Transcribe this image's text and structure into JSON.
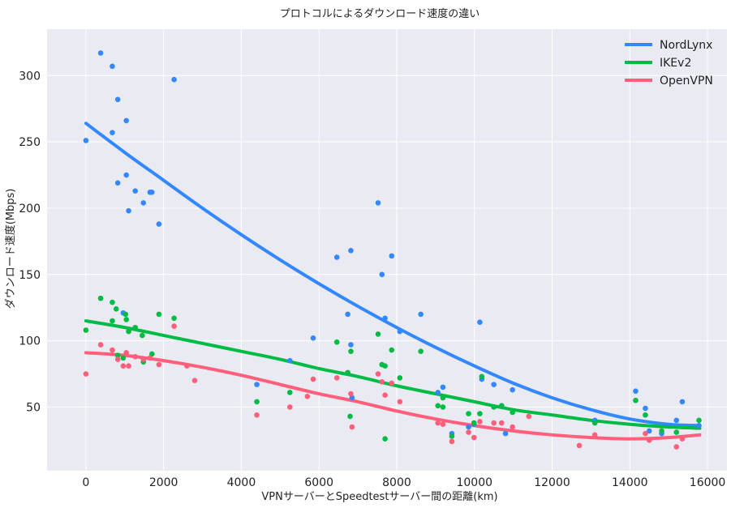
{
  "chart_data": {
    "type": "scatter",
    "title": "プロトコルによるダウンロード速度の違い",
    "xlabel": "VPNサーバーとSpeedtestサーバー間の距離(km)",
    "ylabel": "ダウンロード速度(Mbps)",
    "xlim": [
      -1000,
      16500
    ],
    "ylim": [
      2,
      335
    ],
    "xticks": [
      0,
      2000,
      4000,
      6000,
      8000,
      10000,
      12000,
      14000,
      16000
    ],
    "yticks": [
      50,
      100,
      150,
      200,
      250,
      300
    ],
    "grid": true,
    "background": "#eaeaf2",
    "legend_position": "top-right",
    "series": [
      {
        "name": "NordLynx",
        "color": "#3388ff",
        "points": [
          [
            0,
            251
          ],
          [
            380,
            317
          ],
          [
            680,
            307
          ],
          [
            680,
            257
          ],
          [
            820,
            282
          ],
          [
            820,
            219
          ],
          [
            1040,
            266
          ],
          [
            1040,
            225
          ],
          [
            1100,
            198
          ],
          [
            960,
            121
          ],
          [
            1270,
            213
          ],
          [
            1480,
            204
          ],
          [
            1650,
            212
          ],
          [
            1700,
            212
          ],
          [
            1880,
            188
          ],
          [
            2270,
            297
          ],
          [
            4400,
            67
          ],
          [
            5250,
            85
          ],
          [
            5850,
            102
          ],
          [
            6460,
            163
          ],
          [
            6740,
            120
          ],
          [
            6820,
            168
          ],
          [
            6820,
            97
          ],
          [
            6850,
            57
          ],
          [
            7520,
            204
          ],
          [
            7620,
            150
          ],
          [
            7700,
            117
          ],
          [
            7870,
            164
          ],
          [
            8080,
            107
          ],
          [
            8620,
            120
          ],
          [
            9060,
            61
          ],
          [
            9190,
            65
          ],
          [
            9420,
            30
          ],
          [
            9850,
            35
          ],
          [
            9990,
            37
          ],
          [
            10140,
            114
          ],
          [
            10190,
            71
          ],
          [
            10500,
            67
          ],
          [
            10700,
            51
          ],
          [
            10800,
            30
          ],
          [
            10980,
            63
          ],
          [
            13100,
            40
          ],
          [
            14150,
            62
          ],
          [
            14400,
            49
          ],
          [
            14500,
            32
          ],
          [
            14820,
            30
          ],
          [
            15200,
            40
          ],
          [
            15350,
            54
          ],
          [
            15780,
            36
          ]
        ],
        "trend": [
          [
            0,
            264
          ],
          [
            1000,
            242
          ],
          [
            2000,
            221
          ],
          [
            3000,
            200
          ],
          [
            4000,
            180
          ],
          [
            5000,
            161
          ],
          [
            6000,
            143
          ],
          [
            7000,
            126
          ],
          [
            8000,
            110
          ],
          [
            9000,
            95
          ],
          [
            10000,
            81
          ],
          [
            11000,
            68
          ],
          [
            12000,
            57
          ],
          [
            13000,
            48
          ],
          [
            14000,
            41
          ],
          [
            15000,
            37
          ],
          [
            15800,
            36
          ]
        ]
      },
      {
        "name": "IKEv2",
        "color": "#00bb44",
        "points": [
          [
            0,
            108
          ],
          [
            380,
            132
          ],
          [
            680,
            115
          ],
          [
            680,
            129
          ],
          [
            780,
            124
          ],
          [
            820,
            89
          ],
          [
            960,
            87
          ],
          [
            1020,
            120
          ],
          [
            1040,
            116
          ],
          [
            1100,
            107
          ],
          [
            1270,
            110
          ],
          [
            1450,
            104
          ],
          [
            1480,
            84
          ],
          [
            1700,
            90
          ],
          [
            1880,
            120
          ],
          [
            2270,
            117
          ],
          [
            4400,
            54
          ],
          [
            5250,
            61
          ],
          [
            6460,
            99
          ],
          [
            6740,
            76
          ],
          [
            6800,
            43
          ],
          [
            6820,
            92
          ],
          [
            7520,
            105
          ],
          [
            7620,
            82
          ],
          [
            7700,
            81
          ],
          [
            7700,
            26
          ],
          [
            7870,
            93
          ],
          [
            8080,
            72
          ],
          [
            8620,
            92
          ],
          [
            9060,
            51
          ],
          [
            9190,
            57
          ],
          [
            9190,
            50
          ],
          [
            9420,
            28
          ],
          [
            9850,
            45
          ],
          [
            9990,
            38
          ],
          [
            10140,
            45
          ],
          [
            10190,
            73
          ],
          [
            10500,
            50
          ],
          [
            10700,
            51
          ],
          [
            10980,
            46
          ],
          [
            13100,
            38
          ],
          [
            14150,
            55
          ],
          [
            14400,
            44
          ],
          [
            14820,
            32
          ],
          [
            15200,
            31
          ],
          [
            15780,
            40
          ]
        ],
        "trend": [
          [
            0,
            115
          ],
          [
            1000,
            110
          ],
          [
            2000,
            104
          ],
          [
            3000,
            98
          ],
          [
            4000,
            92
          ],
          [
            5000,
            86
          ],
          [
            6000,
            79
          ],
          [
            7000,
            73
          ],
          [
            8000,
            66
          ],
          [
            9000,
            60
          ],
          [
            10000,
            54
          ],
          [
            11000,
            48
          ],
          [
            12000,
            44
          ],
          [
            13000,
            40
          ],
          [
            14000,
            37
          ],
          [
            15000,
            35
          ],
          [
            15800,
            34
          ]
        ]
      },
      {
        "name": "OpenVPN",
        "color": "#ff5f7a",
        "points": [
          [
            0,
            75
          ],
          [
            380,
            97
          ],
          [
            680,
            93
          ],
          [
            820,
            86
          ],
          [
            960,
            81
          ],
          [
            1040,
            91
          ],
          [
            1100,
            81
          ],
          [
            1270,
            88
          ],
          [
            1480,
            86
          ],
          [
            1650,
            87
          ],
          [
            1880,
            82
          ],
          [
            2270,
            111
          ],
          [
            2600,
            81
          ],
          [
            2800,
            70
          ],
          [
            4400,
            44
          ],
          [
            5250,
            50
          ],
          [
            5700,
            58
          ],
          [
            5850,
            71
          ],
          [
            6460,
            72
          ],
          [
            6820,
            60
          ],
          [
            6850,
            35
          ],
          [
            7520,
            75
          ],
          [
            7620,
            69
          ],
          [
            7700,
            59
          ],
          [
            7870,
            68
          ],
          [
            8080,
            54
          ],
          [
            9060,
            38
          ],
          [
            9190,
            37
          ],
          [
            9420,
            24
          ],
          [
            9850,
            31
          ],
          [
            9990,
            27
          ],
          [
            10140,
            39
          ],
          [
            10500,
            38
          ],
          [
            10700,
            38
          ],
          [
            10980,
            35
          ],
          [
            11400,
            43
          ],
          [
            12700,
            21
          ],
          [
            13100,
            29
          ],
          [
            14400,
            30
          ],
          [
            14500,
            25
          ],
          [
            15200,
            20
          ],
          [
            15350,
            26
          ]
        ],
        "trend": [
          [
            0,
            91
          ],
          [
            1000,
            89
          ],
          [
            2000,
            85
          ],
          [
            3000,
            80
          ],
          [
            4000,
            74
          ],
          [
            5000,
            67
          ],
          [
            6000,
            60
          ],
          [
            7000,
            54
          ],
          [
            8000,
            47
          ],
          [
            9000,
            41
          ],
          [
            10000,
            36
          ],
          [
            11000,
            32
          ],
          [
            12000,
            29
          ],
          [
            13000,
            27
          ],
          [
            14000,
            26
          ],
          [
            15000,
            27
          ],
          [
            15800,
            29
          ]
        ]
      }
    ]
  }
}
